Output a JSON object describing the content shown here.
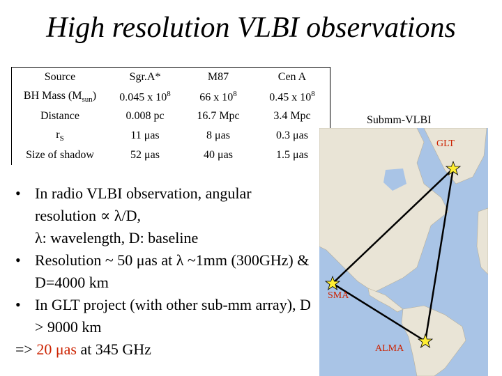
{
  "title": "High resolution VLBI observations",
  "table": {
    "rows": [
      {
        "label": "Source",
        "values": [
          "Sgr.A*",
          "M87",
          "Cen A"
        ]
      },
      {
        "label": "BH Mass (M",
        "label_sub": "sun",
        "label_end": ")",
        "values": [
          "0.045 x 10",
          "66 x 10",
          "0.45 x 10"
        ],
        "exponent": "8"
      },
      {
        "label": "Distance",
        "values": [
          "0.008 pc",
          "16.7 Mpc",
          "3.4 Mpc"
        ]
      },
      {
        "label": "r",
        "label_sub": "S",
        "values": [
          "11 μas",
          "8 μas",
          "0.3 μas"
        ]
      },
      {
        "label": "Size of shadow",
        "values": [
          "52 μas",
          "40 μas",
          "1.5 μas"
        ]
      }
    ]
  },
  "bullets": {
    "marker": "•",
    "b1": "In radio VLBI observation, angular resolution ∝ λ/D,",
    "b1_sub": "λ: wavelength, D: baseline",
    "b2": "Resolution ~ 50 μas at λ ~1mm (300GHz) & D=4000 km",
    "b3": "In GLT project (with other sub-mm array), D > 9000 km",
    "arrow": "=>",
    "highlight": "20 μas",
    "tail": "at 345 GHz"
  },
  "map": {
    "caption": "Submm-VLBI",
    "labels": {
      "glt": "GLT",
      "sma": "SMA",
      "alma": "ALMA"
    },
    "colors": {
      "station_label": "#cc2200",
      "ocean": "#a9c4e6",
      "land": "#e9e4d6",
      "triangle": "#000000",
      "star": "#ffee33"
    }
  }
}
